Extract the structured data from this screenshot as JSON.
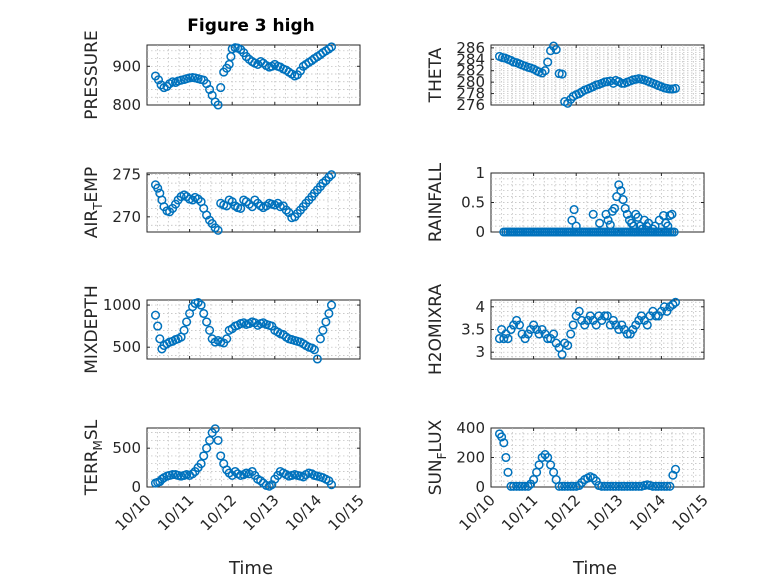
{
  "figure": {
    "title": "Figure 3 high",
    "xlabel": "Time",
    "x_tick_labels": [
      "10/10",
      "10/11",
      "10/12",
      "10/13",
      "10/14",
      "10/15"
    ],
    "marker_color": "#0072bd"
  },
  "chart_data": [
    {
      "type": "scatter",
      "key": "pressure",
      "ylabel": "PRESSURE",
      "ylim": [
        800,
        955
      ],
      "yticks": [
        800,
        900
      ],
      "xlim": [
        10.0,
        15.0
      ],
      "x": [
        10.2,
        10.27,
        10.33,
        10.4,
        10.47,
        10.53,
        10.6,
        10.67,
        10.73,
        10.8,
        10.87,
        10.93,
        11.0,
        11.07,
        11.13,
        11.2,
        11.27,
        11.33,
        11.4,
        11.47,
        11.53,
        11.6,
        11.67,
        11.73,
        11.8,
        11.87,
        11.93,
        11.97,
        12.0,
        12.07,
        12.13,
        12.2,
        12.27,
        12.33,
        12.4,
        12.47,
        12.53,
        12.6,
        12.67,
        12.73,
        12.8,
        12.87,
        12.93,
        13.0,
        13.07,
        13.13,
        13.2,
        13.27,
        13.33,
        13.4,
        13.47,
        13.53,
        13.6,
        13.67,
        13.73,
        13.8,
        13.87,
        13.93,
        14.0,
        14.07,
        14.13,
        14.2,
        14.27,
        14.33
      ],
      "y": [
        875,
        865,
        852,
        845,
        848,
        855,
        860,
        858,
        862,
        864,
        866,
        868,
        870,
        871,
        870,
        868,
        866,
        864,
        855,
        840,
        825,
        808,
        800,
        845,
        885,
        895,
        905,
        925,
        945,
        948,
        947,
        943,
        935,
        925,
        918,
        912,
        908,
        905,
        912,
        908,
        902,
        898,
        900,
        905,
        900,
        898,
        893,
        890,
        885,
        880,
        875,
        878,
        888,
        900,
        905,
        910,
        915,
        920,
        925,
        930,
        935,
        940,
        945,
        950
      ]
    },
    {
      "type": "scatter",
      "key": "theta",
      "ylabel": "THETA",
      "ylim": [
        276,
        286.5
      ],
      "yticks": [
        276,
        278,
        280,
        282,
        284,
        286
      ],
      "xlim": [
        10.0,
        15.0
      ],
      "x": [
        10.2,
        10.27,
        10.33,
        10.4,
        10.47,
        10.53,
        10.6,
        10.67,
        10.73,
        10.8,
        10.87,
        10.93,
        11.0,
        11.07,
        11.13,
        11.2,
        11.27,
        11.33,
        11.4,
        11.47,
        11.53,
        11.6,
        11.67,
        11.73,
        11.8,
        11.87,
        11.93,
        12.0,
        12.07,
        12.13,
        12.2,
        12.27,
        12.33,
        12.4,
        12.47,
        12.53,
        12.6,
        12.67,
        12.73,
        12.8,
        12.87,
        12.93,
        13.0,
        13.07,
        13.13,
        13.2,
        13.27,
        13.33,
        13.4,
        13.47,
        13.53,
        13.6,
        13.67,
        13.73,
        13.8,
        13.87,
        13.93,
        14.0,
        14.07,
        14.13,
        14.2,
        14.27,
        14.33
      ],
      "y": [
        284.5,
        284.3,
        284.2,
        284.0,
        283.8,
        283.5,
        283.4,
        283.2,
        283.0,
        282.8,
        282.6,
        282.5,
        282.3,
        282.0,
        281.8,
        281.6,
        282.0,
        283.5,
        285.5,
        286.3,
        285.7,
        281.5,
        281.4,
        276.6,
        276.3,
        277.0,
        277.5,
        277.8,
        278.0,
        278.3,
        278.6,
        278.8,
        279.0,
        279.2,
        279.5,
        279.6,
        279.8,
        280.0,
        280.1,
        280.2,
        279.8,
        280.3,
        280.1,
        279.8,
        279.8,
        280.0,
        280.2,
        280.4,
        280.5,
        280.6,
        280.5,
        280.4,
        280.2,
        280.0,
        279.8,
        279.6,
        279.4,
        279.2,
        279.0,
        278.9,
        278.8,
        278.8,
        278.9
      ]
    },
    {
      "type": "scatter",
      "key": "air_temp",
      "ylabel_main": "AIR",
      "ylabel_sub": "T",
      "ylabel_tail": "EMP",
      "ylim": [
        268.2,
        275.2
      ],
      "yticks": [
        270,
        275
      ],
      "xlim": [
        10.0,
        15.0
      ],
      "x": [
        10.2,
        10.25,
        10.3,
        10.35,
        10.4,
        10.47,
        10.53,
        10.6,
        10.67,
        10.73,
        10.8,
        10.87,
        10.93,
        11.0,
        11.07,
        11.13,
        11.2,
        11.27,
        11.33,
        11.4,
        11.47,
        11.53,
        11.6,
        11.67,
        11.73,
        11.8,
        11.87,
        11.93,
        12.0,
        12.07,
        12.13,
        12.2,
        12.27,
        12.33,
        12.4,
        12.47,
        12.53,
        12.6,
        12.67,
        12.73,
        12.8,
        12.87,
        12.93,
        13.0,
        13.07,
        13.13,
        13.2,
        13.27,
        13.33,
        13.4,
        13.47,
        13.53,
        13.6,
        13.67,
        13.73,
        13.8,
        13.87,
        13.93,
        14.0,
        14.07,
        14.13,
        14.2,
        14.27,
        14.33
      ],
      "y": [
        273.8,
        273.4,
        272.8,
        272.0,
        271.2,
        270.7,
        270.6,
        271.0,
        271.5,
        272.0,
        272.4,
        272.6,
        272.4,
        272.1,
        272.0,
        272.3,
        272.1,
        271.8,
        271.0,
        270.2,
        269.6,
        269.2,
        268.7,
        268.4,
        271.6,
        271.4,
        271.3,
        272.0,
        271.8,
        271.3,
        271.1,
        271.0,
        272.0,
        271.8,
        271.5,
        271.2,
        272.0,
        271.6,
        271.3,
        271.1,
        271.3,
        271.6,
        271.5,
        271.4,
        271.6,
        271.2,
        271.3,
        270.8,
        270.5,
        269.9,
        270.0,
        270.4,
        270.8,
        271.2,
        271.6,
        272.0,
        272.4,
        272.8,
        273.2,
        273.6,
        274.0,
        274.3,
        274.7,
        275.0
      ]
    },
    {
      "type": "scatter",
      "key": "rainfall",
      "ylabel": "RAINFALL",
      "ylim": [
        0,
        1
      ],
      "yticks": [
        0,
        0.5,
        1
      ],
      "ytick_labels": [
        "0",
        "0.5",
        "1"
      ],
      "xlim": [
        10.0,
        15.0
      ],
      "x": [
        10.3,
        10.35,
        10.4,
        10.45,
        10.5,
        10.55,
        10.6,
        10.65,
        10.7,
        10.75,
        10.8,
        10.85,
        10.9,
        10.95,
        11.0,
        11.05,
        11.1,
        11.15,
        11.2,
        11.25,
        11.3,
        11.35,
        11.4,
        11.45,
        11.5,
        11.55,
        11.6,
        11.65,
        11.7,
        11.75,
        11.8,
        11.85,
        11.9,
        11.95,
        12.0,
        12.05,
        12.1,
        12.15,
        12.2,
        12.25,
        12.3,
        12.35,
        12.4,
        12.45,
        12.5,
        12.55,
        12.6,
        12.65,
        12.7,
        12.75,
        12.8,
        12.85,
        12.9,
        12.95,
        13.0,
        13.05,
        13.1,
        13.15,
        13.2,
        13.25,
        13.3,
        13.35,
        13.4,
        13.45,
        13.5,
        13.55,
        13.6,
        13.65,
        13.7,
        13.75,
        13.8,
        13.85,
        13.9,
        13.95,
        14.0,
        14.05,
        14.1,
        14.15,
        14.2,
        14.25,
        14.3,
        11.9,
        11.95,
        12.0,
        12.4,
        12.55,
        12.7,
        12.75,
        12.8,
        12.85,
        12.9,
        12.95,
        13.0,
        13.05,
        13.1,
        13.15,
        13.2,
        13.25,
        13.3,
        13.35,
        13.4,
        13.45,
        13.5,
        13.55,
        13.6,
        13.65,
        13.7,
        13.8,
        13.85,
        13.95,
        14.05,
        14.1,
        14.15,
        14.2,
        14.25
      ],
      "y": [
        0,
        0,
        0,
        0,
        0,
        0,
        0,
        0,
        0,
        0,
        0,
        0,
        0,
        0,
        0,
        0,
        0,
        0,
        0,
        0,
        0,
        0,
        0,
        0,
        0,
        0,
        0,
        0,
        0,
        0,
        0,
        0,
        0,
        0,
        0,
        0,
        0,
        0,
        0,
        0,
        0,
        0,
        0,
        0,
        0,
        0,
        0,
        0,
        0,
        0,
        0,
        0,
        0,
        0,
        0,
        0,
        0,
        0,
        0,
        0,
        0,
        0,
        0,
        0,
        0,
        0,
        0,
        0,
        0,
        0,
        0,
        0,
        0,
        0,
        0,
        0,
        0,
        0,
        0,
        0,
        0,
        0.2,
        0.38,
        0.1,
        0.3,
        0.15,
        0.3,
        0.2,
        0.12,
        0.35,
        0.4,
        0.6,
        0.8,
        0.7,
        0.55,
        0.4,
        0.3,
        0.2,
        0.15,
        0.1,
        0.3,
        0.25,
        0.1,
        0.05,
        0.2,
        0.1,
        0.15,
        0.05,
        0.1,
        0.2,
        0.28,
        0.15,
        0.1,
        0.28,
        0.3
      ]
    },
    {
      "type": "scatter",
      "key": "mixdepth",
      "ylabel": "MIXDEPTH",
      "ylim": [
        360,
        1060
      ],
      "yticks": [
        500,
        1000
      ],
      "xlim": [
        10.0,
        15.0
      ],
      "x": [
        10.2,
        10.25,
        10.3,
        10.35,
        10.4,
        10.47,
        10.53,
        10.6,
        10.67,
        10.73,
        10.8,
        10.87,
        10.93,
        11.0,
        11.07,
        11.13,
        11.2,
        11.27,
        11.33,
        11.4,
        11.47,
        11.53,
        11.6,
        11.67,
        11.73,
        11.8,
        11.87,
        11.93,
        12.0,
        12.07,
        12.13,
        12.2,
        12.27,
        12.33,
        12.4,
        12.47,
        12.53,
        12.6,
        12.67,
        12.73,
        12.8,
        12.87,
        12.93,
        13.0,
        13.07,
        13.13,
        13.2,
        13.27,
        13.33,
        13.4,
        13.47,
        13.53,
        13.6,
        13.67,
        13.73,
        13.8,
        13.87,
        13.93,
        14.0,
        14.07,
        14.13,
        14.2,
        14.27,
        14.33
      ],
      "y": [
        880,
        750,
        600,
        480,
        520,
        540,
        560,
        570,
        590,
        600,
        620,
        700,
        800,
        900,
        980,
        1020,
        1030,
        1000,
        900,
        800,
        700,
        600,
        560,
        580,
        560,
        550,
        600,
        700,
        720,
        750,
        760,
        780,
        790,
        770,
        780,
        800,
        790,
        760,
        780,
        790,
        770,
        760,
        750,
        700,
        680,
        660,
        650,
        620,
        600,
        590,
        580,
        570,
        560,
        540,
        520,
        500,
        490,
        470,
        360,
        600,
        700,
        800,
        900,
        1000
      ]
    },
    {
      "type": "scatter",
      "key": "h2omixra",
      "ylabel": "H2OMIXRA",
      "ylim": [
        2.85,
        4.15
      ],
      "yticks": [
        3,
        3.5,
        4
      ],
      "ytick_labels": [
        "3",
        "3.5",
        "4"
      ],
      "xlim": [
        10.0,
        15.0
      ],
      "x": [
        10.2,
        10.25,
        10.3,
        10.35,
        10.4,
        10.47,
        10.53,
        10.6,
        10.67,
        10.73,
        10.8,
        10.87,
        10.93,
        11.0,
        11.07,
        11.13,
        11.2,
        11.27,
        11.33,
        11.4,
        11.47,
        11.53,
        11.6,
        11.67,
        11.73,
        11.8,
        11.87,
        11.93,
        12.0,
        12.07,
        12.13,
        12.2,
        12.27,
        12.33,
        12.4,
        12.47,
        12.53,
        12.6,
        12.67,
        12.73,
        12.8,
        12.87,
        12.93,
        13.0,
        13.07,
        13.13,
        13.2,
        13.27,
        13.33,
        13.4,
        13.47,
        13.53,
        13.6,
        13.67,
        13.73,
        13.8,
        13.87,
        13.93,
        14.0,
        14.07,
        14.13,
        14.2,
        14.27,
        14.33
      ],
      "y": [
        3.3,
        3.5,
        3.3,
        3.4,
        3.3,
        3.5,
        3.6,
        3.7,
        3.6,
        3.4,
        3.3,
        3.4,
        3.5,
        3.6,
        3.5,
        3.4,
        3.5,
        3.4,
        3.3,
        3.3,
        3.4,
        3.2,
        3.1,
        2.95,
        3.2,
        3.15,
        3.4,
        3.6,
        3.8,
        3.9,
        3.7,
        3.6,
        3.7,
        3.8,
        3.7,
        3.6,
        3.8,
        3.7,
        3.8,
        3.8,
        3.6,
        3.7,
        3.6,
        3.5,
        3.6,
        3.5,
        3.4,
        3.4,
        3.5,
        3.6,
        3.7,
        3.8,
        3.7,
        3.6,
        3.8,
        3.9,
        3.8,
        3.8,
        3.9,
        4.0,
        3.9,
        4.0,
        4.05,
        4.1
      ]
    },
    {
      "type": "scatter",
      "key": "terr_msl",
      "ylabel_main": "TERR",
      "ylabel_sub": "M",
      "ylabel_tail": "SL",
      "ylim": [
        0,
        760
      ],
      "yticks": [
        0,
        500
      ],
      "xlim": [
        10.0,
        15.0
      ],
      "x": [
        10.2,
        10.25,
        10.3,
        10.35,
        10.4,
        10.47,
        10.53,
        10.6,
        10.67,
        10.73,
        10.8,
        10.87,
        10.93,
        11.0,
        11.07,
        11.13,
        11.2,
        11.27,
        11.33,
        11.4,
        11.47,
        11.53,
        11.6,
        11.67,
        11.73,
        11.8,
        11.87,
        11.93,
        12.0,
        12.07,
        12.13,
        12.2,
        12.27,
        12.33,
        12.4,
        12.47,
        12.53,
        12.6,
        12.67,
        12.73,
        12.8,
        12.87,
        12.93,
        13.0,
        13.07,
        13.13,
        13.2,
        13.27,
        13.33,
        13.4,
        13.47,
        13.53,
        13.6,
        13.67,
        13.73,
        13.8,
        13.87,
        13.93,
        14.0,
        14.07,
        14.13,
        14.2,
        14.27,
        14.33
      ],
      "y": [
        50,
        60,
        70,
        100,
        120,
        140,
        150,
        160,
        160,
        150,
        140,
        150,
        160,
        150,
        170,
        200,
        250,
        300,
        400,
        500,
        600,
        700,
        750,
        600,
        400,
        300,
        220,
        180,
        150,
        200,
        170,
        150,
        160,
        180,
        170,
        200,
        150,
        100,
        80,
        50,
        20,
        10,
        30,
        100,
        150,
        200,
        180,
        160,
        140,
        150,
        160,
        150,
        140,
        130,
        160,
        180,
        170,
        150,
        140,
        130,
        120,
        100,
        80,
        30
      ]
    },
    {
      "type": "scatter",
      "key": "sun_flux",
      "ylabel_main": "SUN",
      "ylabel_sub": "F",
      "ylabel_tail": "LUX",
      "ylim": [
        0,
        400
      ],
      "yticks": [
        0,
        200,
        400
      ],
      "xlim": [
        10.0,
        15.0
      ],
      "x": [
        10.2,
        10.25,
        10.3,
        10.35,
        10.4,
        10.47,
        10.53,
        10.6,
        10.67,
        10.73,
        10.8,
        10.87,
        10.93,
        11.0,
        11.07,
        11.13,
        11.2,
        11.27,
        11.33,
        11.4,
        11.47,
        11.53,
        11.6,
        11.67,
        11.73,
        11.8,
        11.87,
        11.93,
        12.0,
        12.07,
        12.13,
        12.2,
        12.27,
        12.33,
        12.4,
        12.47,
        12.53,
        12.6,
        12.67,
        12.73,
        12.8,
        12.87,
        12.93,
        13.0,
        13.07,
        13.13,
        13.2,
        13.27,
        13.33,
        13.4,
        13.47,
        13.53,
        13.6,
        13.67,
        13.73,
        13.8,
        13.87,
        13.93,
        14.0,
        14.07,
        14.13,
        14.2,
        14.27,
        14.33
      ],
      "y": [
        360,
        340,
        300,
        200,
        100,
        5,
        5,
        5,
        5,
        5,
        5,
        5,
        20,
        50,
        100,
        150,
        200,
        220,
        200,
        150,
        100,
        50,
        5,
        5,
        5,
        5,
        5,
        5,
        5,
        10,
        30,
        50,
        60,
        70,
        60,
        40,
        10,
        5,
        5,
        5,
        5,
        5,
        5,
        5,
        5,
        5,
        5,
        5,
        5,
        5,
        5,
        5,
        10,
        15,
        10,
        5,
        5,
        5,
        5,
        5,
        5,
        5,
        80,
        120
      ]
    }
  ]
}
